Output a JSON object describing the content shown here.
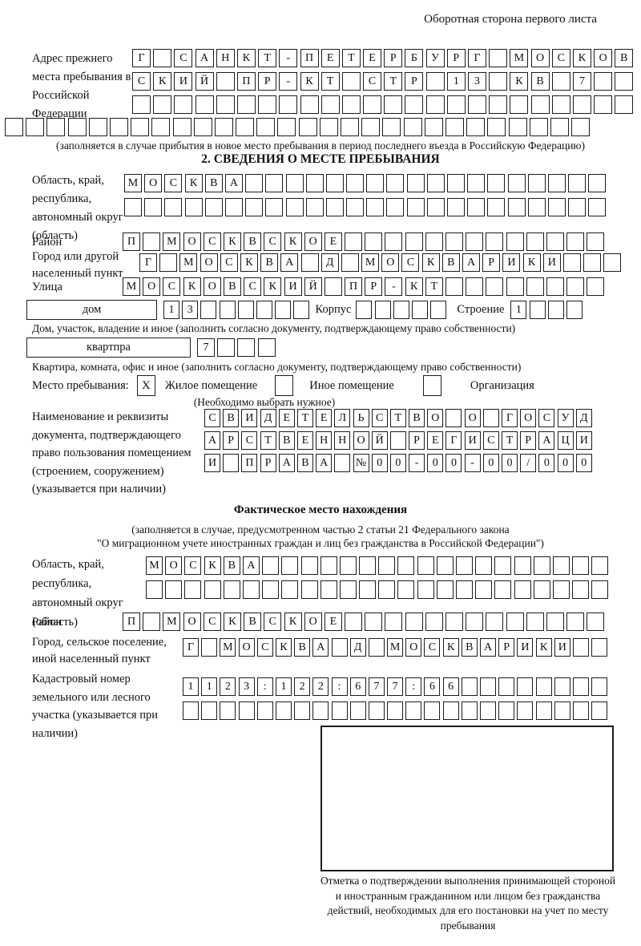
{
  "page": {
    "header_note": "Оборотная сторона первого листа"
  },
  "prev_address": {
    "label": "Адрес прежнего места пребывания в Российской Федерации",
    "r1": "Г САНКТ-ПЕТЕРБУРГ МОСКОВ",
    "r2": "СКИЙ ПР-КТ СТР 13 КВ 7",
    "r3": "",
    "r4": "",
    "hint": "(заполняется в случае прибытия в новое место пребывания в период последнего въезда в Российскую Федерацию)"
  },
  "section2": {
    "title": "2. СВЕДЕНИЯ О МЕСТЕ ПРЕБЫВАНИЯ",
    "oblast": {
      "label": "Область, край, республика, автономный округ (область)",
      "r1": "МОСКВА",
      "r2": ""
    },
    "rajon": {
      "label": "Район",
      "value": "П МОСКВСКОЕ"
    },
    "gorod": {
      "label": "Город или другой населенный пункт",
      "value": "Г МОСКВА Д МОСКВАРИКИ"
    },
    "ulitsa": {
      "label": "Улица",
      "value": "МОСКОВСКИЙ ПР-КТ"
    },
    "dom": {
      "label": "дом",
      "value": "13",
      "korpus_label": "Корпус",
      "korpus_value": "",
      "stroenie_label": "Строение",
      "stroenie_value": "1",
      "hint": "Дом, участок, владение и иное (заполнить согласно документу, подтверждающему право собственности)"
    },
    "kvartira": {
      "label": "квартпра",
      "value": "7",
      "hint": "Квартира, комната, офис и иное (заполнить согласно документу, подтверждающему право собственности)"
    },
    "mesto": {
      "label": "Место пребывания:",
      "zhiloe_mark": "X",
      "zhiloe_label": "Жилое помещение",
      "inoe_mark": "",
      "inoe_label": "Иное помещение",
      "org_mark": "",
      "org_label": "Организация",
      "hint": "(Необходимо выбрать нужное)"
    },
    "doc": {
      "label": "Наименование и реквизиты документа, подтверждающего право пользования помещением (строением, сооружением) (указывается при наличии)",
      "r1": "СВИДЕТЕЛЬСТВО О ГОСУД",
      "r2": "АРСТВЕННОЙ РЕГИСТРАЦИ",
      "r3": "И ПРАВА №00-00-00/000"
    }
  },
  "fact": {
    "title": "Фактическое место нахождения",
    "hint1": "(заполняется в случае, предусмотренном частью 2 статьи 21 Федерального закона",
    "hint2": "\"О миграционном учете иностранных граждан и лиц без гражданства в Российской Федерации\")",
    "oblast": {
      "label": "Область, край, республика, автономный округ (область)",
      "r1": "МОСКВА",
      "r2": ""
    },
    "rajon": {
      "label": "Район",
      "value": "П МОСКВСКОЕ"
    },
    "gorod": {
      "label": "Город, сельское поселение, иной населенный пункт",
      "value": "Г МОСКВА Д МОСКВАРИКИ"
    },
    "kadastr": {
      "label": "Кадастровый номер земельного или лесного участка (указывается при наличии)",
      "r1": "1123:122:677:66",
      "r2": ""
    }
  },
  "stamp": {
    "caption": "Отметка о подтверждении выполнения принимающей стороной и иностранным гражданином или лицом без гражданства действий, необходимых для его постановки на учет по месту пребывания"
  }
}
